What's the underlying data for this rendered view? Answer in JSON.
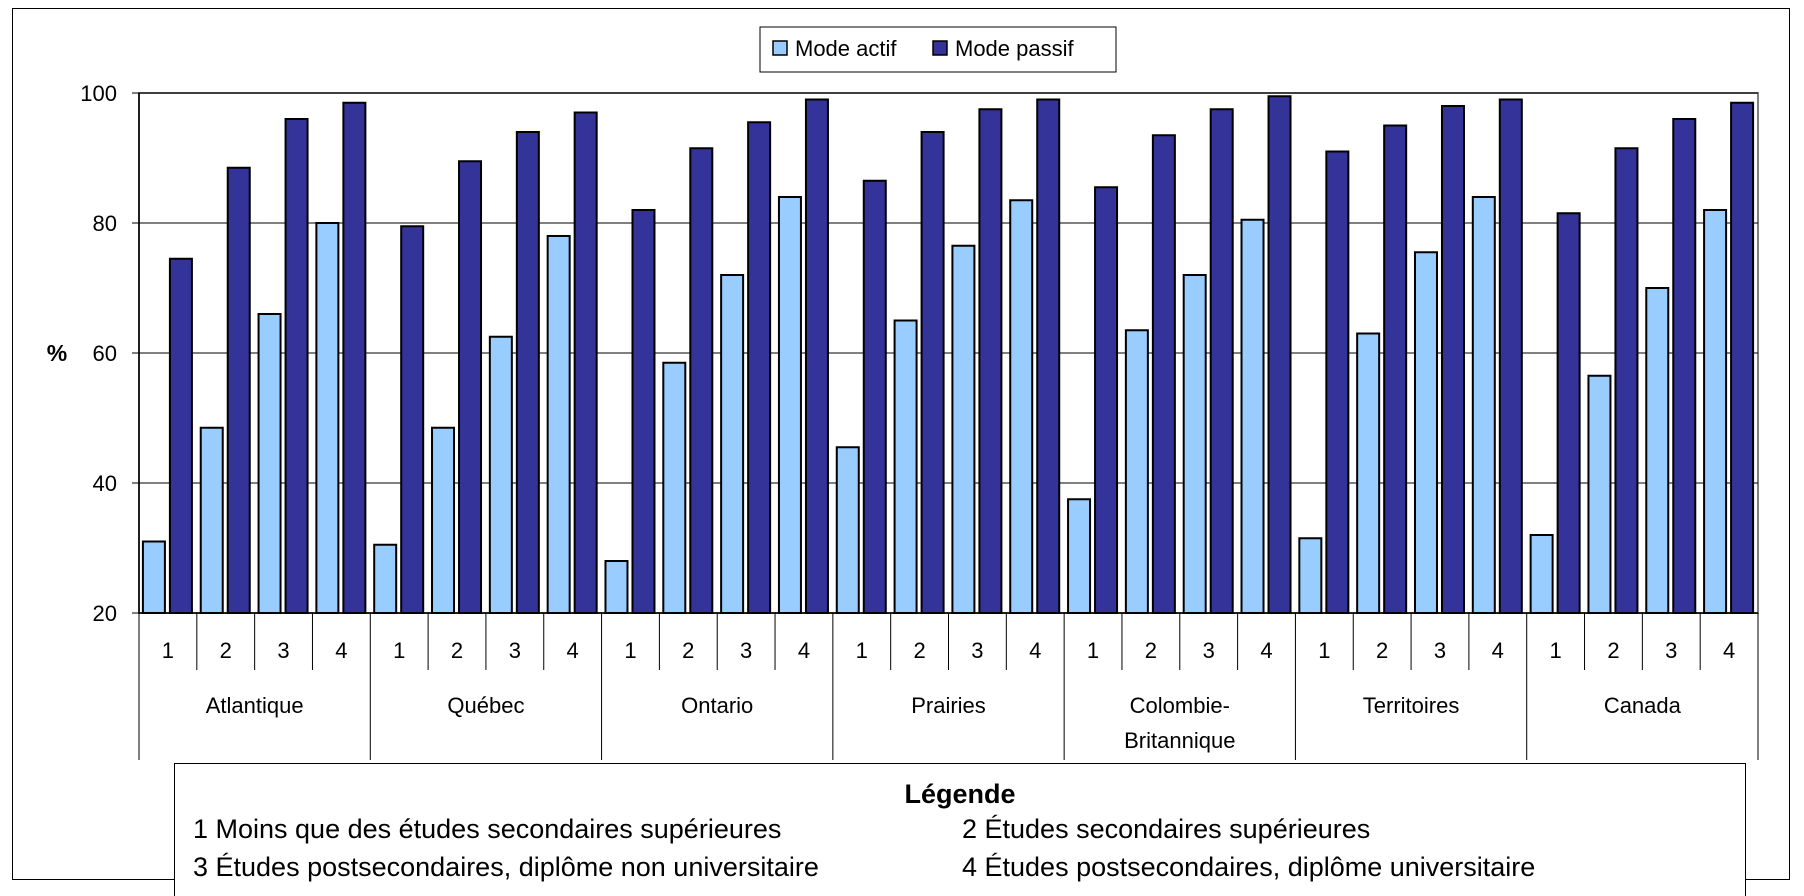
{
  "chart_data": {
    "type": "bar",
    "ylabel": "%",
    "ylim": [
      20,
      100
    ],
    "yticks": [
      20,
      40,
      60,
      80,
      100
    ],
    "grid": true,
    "legend_position": "top-center",
    "groups": [
      "Atlantique",
      "Québec",
      "Ontario",
      "Prairies",
      "Colombie-Britannique",
      "Territoires",
      "Canada"
    ],
    "group_labels": [
      [
        "Atlantique"
      ],
      [
        "Québec"
      ],
      [
        "Ontario"
      ],
      [
        "Prairies"
      ],
      [
        "Colombie-",
        "Britannique"
      ],
      [
        "Territoires"
      ],
      [
        "Canada"
      ]
    ],
    "categories": [
      "1",
      "2",
      "3",
      "4"
    ],
    "series": [
      {
        "name": "Mode actif",
        "color": "#99ccff",
        "values": [
          [
            31,
            48.5,
            66,
            80
          ],
          [
            30.5,
            48.5,
            62.5,
            78
          ],
          [
            28,
            58.5,
            72,
            84
          ],
          [
            45.5,
            65,
            76.5,
            83.5
          ],
          [
            37.5,
            63.5,
            72,
            80.5
          ],
          [
            31.5,
            63,
            75.5,
            84
          ],
          [
            32,
            56.5,
            70,
            82
          ]
        ]
      },
      {
        "name": "Mode passif",
        "color": "#333399",
        "values": [
          [
            74.5,
            88.5,
            96,
            98.5
          ],
          [
            79.5,
            89.5,
            94,
            97
          ],
          [
            82,
            91.5,
            95.5,
            99
          ],
          [
            86.5,
            94,
            97.5,
            99
          ],
          [
            85.5,
            93.5,
            97.5,
            99.5
          ],
          [
            91,
            95,
            98,
            99
          ],
          [
            81.5,
            91.5,
            96,
            98.5
          ]
        ]
      }
    ]
  },
  "legend_note": {
    "title": "Légende",
    "items": [
      "1 Moins que des études secondaires supérieures",
      "2 Études secondaires supérieures",
      "3 Études postsecondaires, diplôme non universitaire",
      "4 Études postsecondaires, diplôme universitaire"
    ]
  }
}
